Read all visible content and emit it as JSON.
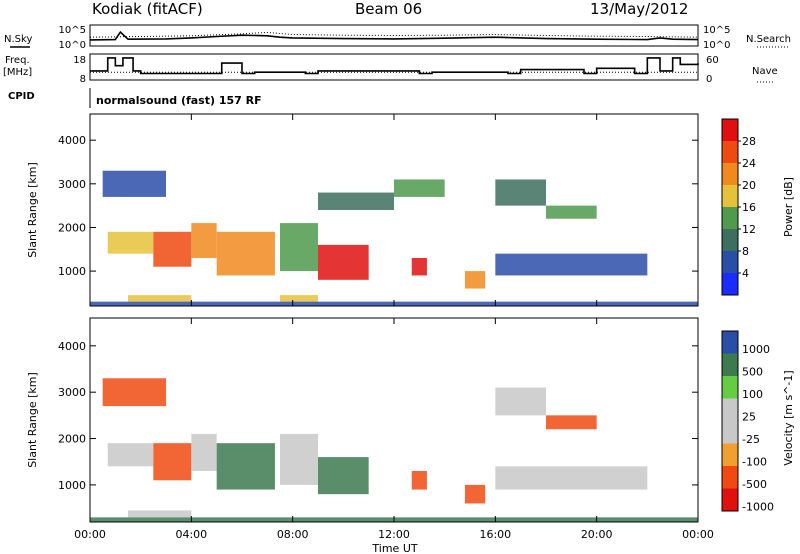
{
  "header": {
    "station": "Kodiak (fitACF)",
    "beam": "Beam 06",
    "date": "13/May/2012"
  },
  "side_labels": {
    "nsky": "N.Sky",
    "nsearch": "N.Search",
    "freq_line1": "Freq.",
    "freq_line2": "[MHz]",
    "nave": "Nave",
    "cpid": "CPID",
    "cpid_value": "normalsound (fast) 157 RF"
  },
  "colors": {
    "power_scale": [
      "#1a2cff",
      "#2a4ea8",
      "#3d6e5e",
      "#4f9a4e",
      "#e6c23a",
      "#f08a1e",
      "#ef4a12",
      "#e01010"
    ],
    "velocity_scale": [
      "#e01010",
      "#f04a12",
      "#f0a030",
      "#c8c8c8",
      "#c8c8c8",
      "#66cc44",
      "#3d7a50",
      "#2a4ea8"
    ]
  },
  "chart_data": [
    {
      "type": "line",
      "name": "noise",
      "y_ticks_left": [
        "10^5",
        "10^0"
      ],
      "y_ticks_right": [
        "10^5",
        "10^0"
      ],
      "series": [
        {
          "name": "N.Sky",
          "style": "solid",
          "x_hours": [
            0,
            1,
            1.2,
            1.5,
            3,
            4,
            5,
            6,
            7,
            7.5,
            8,
            10,
            12,
            14,
            16,
            18,
            20,
            22,
            22.5,
            23,
            24
          ],
          "log10": [
            1.2,
            1.3,
            3.5,
            1.4,
            1.5,
            1.8,
            2.2,
            2.6,
            2.4,
            2.0,
            1.8,
            1.6,
            1.5,
            1.7,
            2.0,
            1.6,
            1.4,
            1.3,
            1.8,
            1.4,
            1.3
          ]
        },
        {
          "name": "N.Search",
          "style": "dotted",
          "x_hours": [
            0,
            2,
            4,
            6,
            7,
            8,
            10,
            12,
            14,
            16,
            18,
            20,
            22,
            24
          ],
          "log10": [
            2.0,
            2.2,
            2.4,
            3.0,
            3.4,
            2.8,
            2.6,
            2.5,
            2.6,
            2.8,
            2.5,
            2.3,
            2.2,
            2.0
          ]
        }
      ]
    },
    {
      "type": "line",
      "name": "frequency-nave",
      "y_ticks_left": [
        "18",
        "8"
      ],
      "y_ticks_right": [
        "60",
        "0"
      ],
      "series": [
        {
          "name": "Freq.",
          "style": "step",
          "x_hours": [
            0,
            0.7,
            1.0,
            1.3,
            1.7,
            2.0,
            5.2,
            6.0,
            6.5,
            8.5,
            9.0,
            13.0,
            13.5,
            16.5,
            17.0,
            19.5,
            20.0,
            21.5,
            22.0,
            22.5,
            23.0,
            23.3,
            24
          ],
          "mhz": [
            11.5,
            16.5,
            13.5,
            16.5,
            11.5,
            10.5,
            14.5,
            10.5,
            11.0,
            10.5,
            11.5,
            10.5,
            11.0,
            10.5,
            12.0,
            10.5,
            12.5,
            10.5,
            16.5,
            11.5,
            16.5,
            14.0,
            14.5
          ]
        },
        {
          "name": "Nave",
          "style": "dotted",
          "x_hours": [
            0,
            24
          ],
          "value": [
            18,
            18
          ]
        }
      ]
    },
    {
      "type": "heatmap",
      "name": "power",
      "title": "",
      "xlabel": "",
      "ylabel": "Slant Range [km]",
      "y_ticks": [
        1000,
        2000,
        3000,
        4000
      ],
      "ylim": [
        200,
        4600
      ],
      "colorbar_label": "Power [dB]",
      "colorbar_ticks": [
        4,
        8,
        12,
        16,
        20,
        24,
        28
      ],
      "colorbar_range": [
        0,
        32
      ],
      "bands": [
        {
          "x0": 0.7,
          "x1": 2.5,
          "y0": 1400,
          "y1": 1900,
          "v": 18
        },
        {
          "x0": 2.5,
          "x1": 4.0,
          "y0": 1100,
          "y1": 1900,
          "v": 26
        },
        {
          "x0": 4.0,
          "x1": 5.0,
          "y0": 1300,
          "y1": 2100,
          "v": 22
        },
        {
          "x0": 5.0,
          "x1": 7.3,
          "y0": 900,
          "y1": 1900,
          "v": 20
        },
        {
          "x0": 7.5,
          "x1": 9.0,
          "y0": 1000,
          "y1": 2100,
          "v": 14
        },
        {
          "x0": 9.0,
          "x1": 11.0,
          "y0": 800,
          "y1": 1600,
          "v": 28
        },
        {
          "x0": 12.7,
          "x1": 13.3,
          "y0": 900,
          "y1": 1300,
          "v": 28
        },
        {
          "x0": 14.8,
          "x1": 15.6,
          "y0": 600,
          "y1": 1000,
          "v": 20
        },
        {
          "x0": 9.0,
          "x1": 12.0,
          "y0": 2400,
          "y1": 2800,
          "v": 8
        },
        {
          "x0": 12.0,
          "x1": 14.0,
          "y0": 2700,
          "y1": 3100,
          "v": 12
        },
        {
          "x0": 16.0,
          "x1": 18.0,
          "y0": 2500,
          "y1": 3100,
          "v": 10
        },
        {
          "x0": 18.0,
          "x1": 20.0,
          "y0": 2200,
          "y1": 2500,
          "v": 14
        },
        {
          "x0": 16.0,
          "x1": 22.0,
          "y0": 900,
          "y1": 1400,
          "v": 6
        },
        {
          "x0": 0.5,
          "x1": 3.0,
          "y0": 2700,
          "y1": 3300,
          "v": 6
        },
        {
          "x0": 1.5,
          "x1": 4.0,
          "y0": 300,
          "y1": 450,
          "v": 16
        },
        {
          "x0": 7.5,
          "x1": 9.0,
          "y0": 300,
          "y1": 450,
          "v": 16
        },
        {
          "x0": 0,
          "x1": 24,
          "y0": 200,
          "y1": 300,
          "v": 6
        }
      ]
    },
    {
      "type": "heatmap",
      "name": "velocity",
      "title": "",
      "xlabel": "Time UT",
      "ylabel": "Slant Range [km]",
      "x_ticks": [
        "00:00",
        "04:00",
        "08:00",
        "12:00",
        "16:00",
        "20:00",
        "00:00"
      ],
      "y_ticks": [
        1000,
        2000,
        3000,
        4000
      ],
      "ylim": [
        200,
        4600
      ],
      "colorbar_label": "Velocity [m s^-1]",
      "colorbar_ticks": [
        "1000",
        "500",
        "100",
        "25",
        "-25",
        "-100",
        "-500",
        "-1000"
      ],
      "bands": [
        {
          "x0": 0.7,
          "x1": 2.5,
          "y0": 1400,
          "y1": 1900,
          "v": 0
        },
        {
          "x0": 2.5,
          "x1": 4.0,
          "y0": 1100,
          "y1": 1900,
          "v": -150
        },
        {
          "x0": 4.0,
          "x1": 5.0,
          "y0": 1300,
          "y1": 2100,
          "v": 0
        },
        {
          "x0": 5.0,
          "x1": 7.3,
          "y0": 900,
          "y1": 1900,
          "v": 300
        },
        {
          "x0": 7.5,
          "x1": 9.0,
          "y0": 1000,
          "y1": 2100,
          "v": 0
        },
        {
          "x0": 9.0,
          "x1": 11.0,
          "y0": 800,
          "y1": 1600,
          "v": 150
        },
        {
          "x0": 12.7,
          "x1": 13.3,
          "y0": 900,
          "y1": 1300,
          "v": -300
        },
        {
          "x0": 14.8,
          "x1": 15.6,
          "y0": 600,
          "y1": 1000,
          "v": -150
        },
        {
          "x0": 16.0,
          "x1": 18.0,
          "y0": 2500,
          "y1": 3100,
          "v": 0
        },
        {
          "x0": 18.0,
          "x1": 20.0,
          "y0": 2200,
          "y1": 2500,
          "v": -300
        },
        {
          "x0": 16.0,
          "x1": 22.0,
          "y0": 900,
          "y1": 1400,
          "v": 0
        },
        {
          "x0": 0.5,
          "x1": 3.0,
          "y0": 2700,
          "y1": 3300,
          "v": -150
        },
        {
          "x0": 1.5,
          "x1": 4.0,
          "y0": 300,
          "y1": 450,
          "v": 0
        },
        {
          "x0": 0,
          "x1": 24,
          "y0": 200,
          "y1": 300,
          "v": 150
        }
      ]
    }
  ]
}
